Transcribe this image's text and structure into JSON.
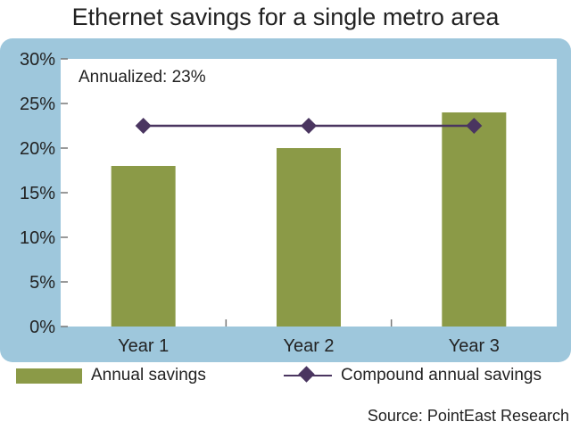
{
  "title": "Ethernet savings for a single metro area",
  "annotation": "Annualized: 23%",
  "source": "Source: PointEast Research",
  "colors": {
    "bar": "#8b9a47",
    "line": "#4a3560",
    "panel": "#9ec7dc",
    "plot_bg": "#ffffff"
  },
  "chart_data": {
    "type": "bar",
    "categories": [
      "Year 1",
      "Year 2",
      "Year 3"
    ],
    "series": [
      {
        "name": "Annual savings",
        "type": "bar",
        "values": [
          18,
          20,
          24
        ]
      },
      {
        "name": "Compound annual savings",
        "type": "line",
        "values": [
          22.5,
          22.5,
          22.5
        ]
      }
    ],
    "yticks": [
      "0%",
      "5%",
      "10%",
      "15%",
      "20%",
      "25%",
      "30%"
    ],
    "ylim": [
      0,
      30
    ],
    "grid": false,
    "legend": "bottom",
    "annotations": [
      "Annualized: 23%"
    ]
  }
}
